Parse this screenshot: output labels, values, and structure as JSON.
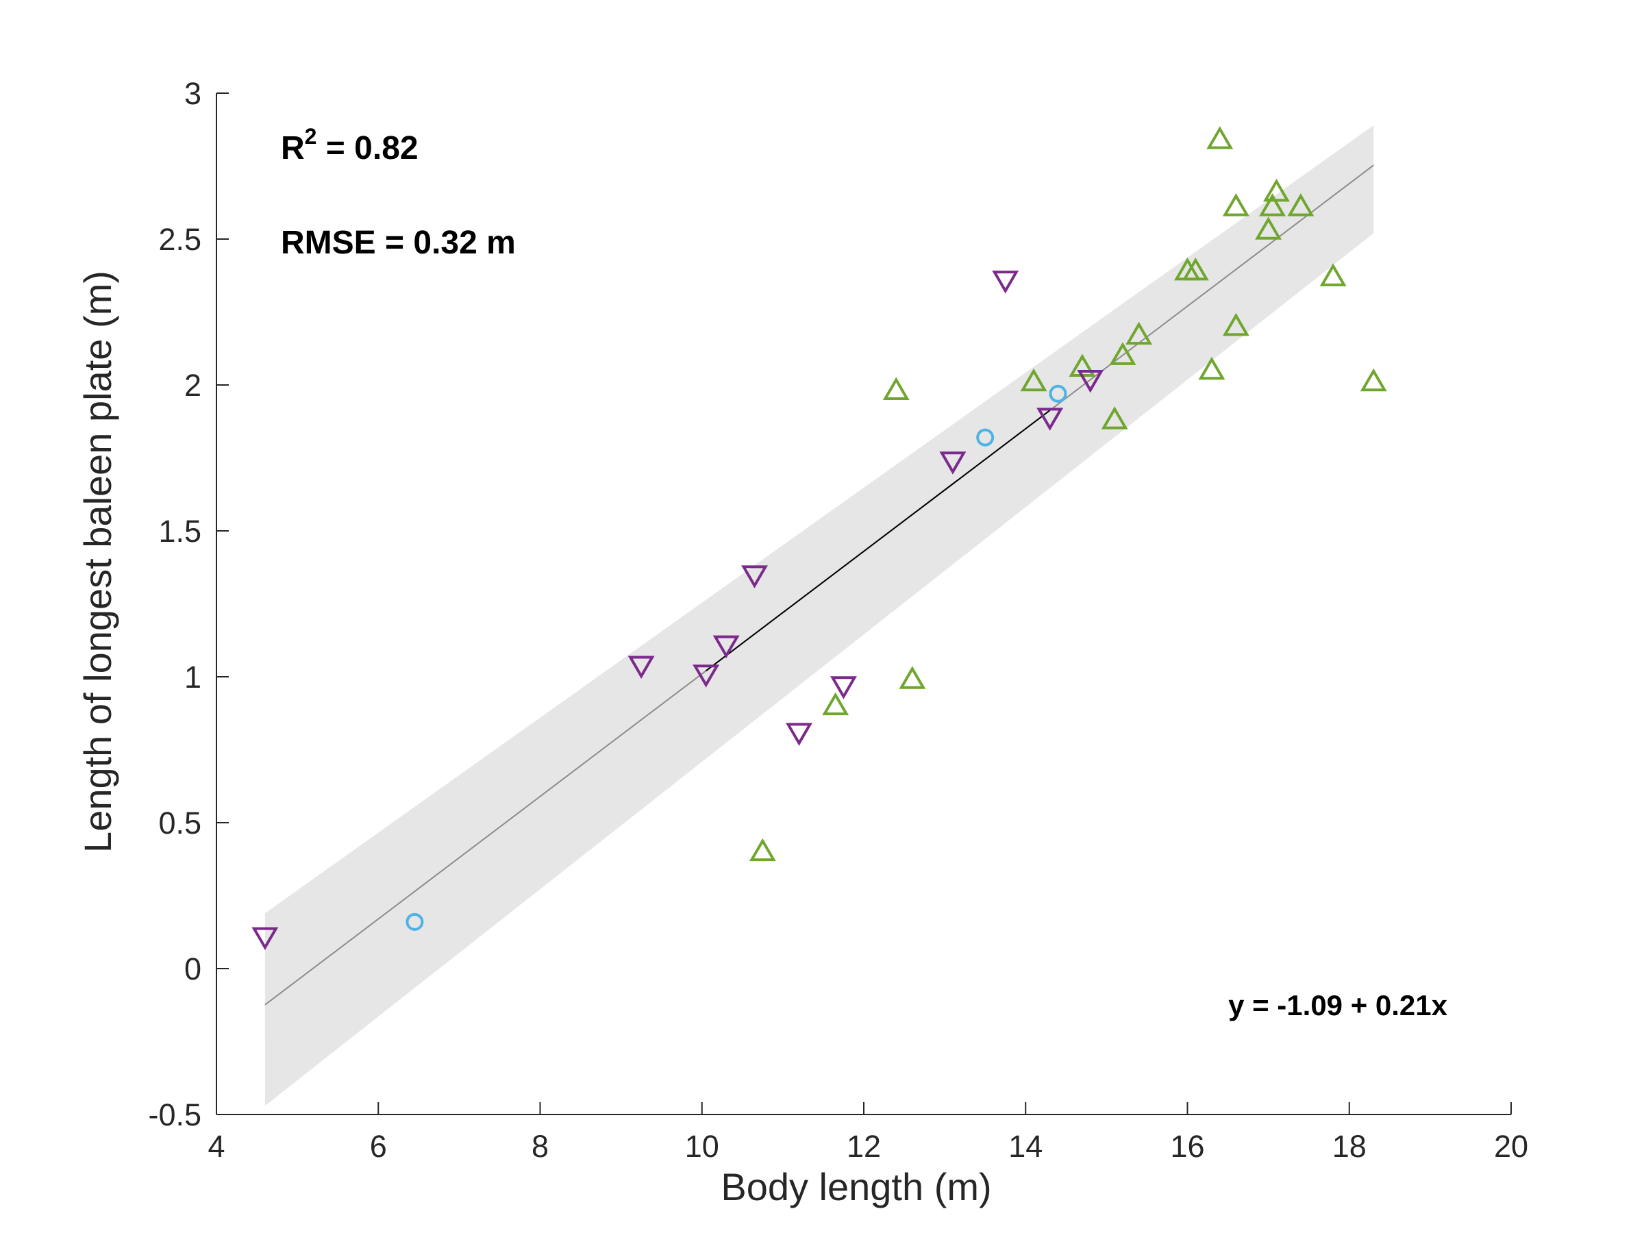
{
  "chart_data": {
    "type": "scatter",
    "xlabel": "Body length (m)",
    "ylabel": "Length of longest baleen plate (m)",
    "xlim": [
      4,
      20
    ],
    "ylim": [
      -0.5,
      3
    ],
    "xticks": [
      "4",
      "6",
      "8",
      "10",
      "12",
      "14",
      "16",
      "18",
      "20"
    ],
    "yticks": [
      "-0.5",
      "0",
      "0.5",
      "1",
      "1.5",
      "2",
      "2.5",
      "3"
    ],
    "grid": false,
    "annotations": {
      "r2_label": "R",
      "r2_sup": "2",
      "r2_value": " = 0.82",
      "rmse": "RMSE = 0.32 m",
      "equation": "y = -1.09 + 0.21x"
    },
    "fit": {
      "intercept": -1.09,
      "slope": 0.21,
      "x_range": [
        4.6,
        18.3
      ],
      "highlight_x_range": [
        10.05,
        14.3
      ],
      "band_lower": [
        [
          4.6,
          -0.47
        ],
        [
          18.3,
          2.52
        ]
      ],
      "band_upper": [
        [
          4.6,
          0.19
        ],
        [
          18.3,
          2.89
        ]
      ]
    },
    "colors": {
      "band": "#e6e6e6",
      "fit_line": "#8c8c8c",
      "fit_highlight": "#000000",
      "triangle_up": "#6fa62e",
      "triangle_down": "#7b2a8c",
      "circle": "#4db3e6",
      "axis": "#262626"
    },
    "series": [
      {
        "marker": "triangle-up",
        "points": [
          [
            10.75,
            0.4
          ],
          [
            11.65,
            0.9
          ],
          [
            12.6,
            0.99
          ],
          [
            12.4,
            1.98
          ],
          [
            14.1,
            2.01
          ],
          [
            14.7,
            2.06
          ],
          [
            15.1,
            1.88
          ],
          [
            15.2,
            2.1
          ],
          [
            15.4,
            2.17
          ],
          [
            16.0,
            2.39
          ],
          [
            16.1,
            2.39
          ],
          [
            16.3,
            2.05
          ],
          [
            16.4,
            2.84
          ],
          [
            16.6,
            2.61
          ],
          [
            16.6,
            2.2
          ],
          [
            17.0,
            2.53
          ],
          [
            17.05,
            2.61
          ],
          [
            17.1,
            2.66
          ],
          [
            17.4,
            2.61
          ],
          [
            17.8,
            2.37
          ],
          [
            18.3,
            2.01
          ]
        ]
      },
      {
        "marker": "triangle-down",
        "points": [
          [
            4.6,
            0.11
          ],
          [
            9.25,
            1.04
          ],
          [
            10.05,
            1.01
          ],
          [
            10.3,
            1.11
          ],
          [
            10.65,
            1.35
          ],
          [
            11.2,
            0.81
          ],
          [
            11.75,
            0.97
          ],
          [
            13.1,
            1.74
          ],
          [
            13.75,
            2.36
          ],
          [
            14.3,
            1.89
          ],
          [
            14.8,
            2.02
          ]
        ]
      },
      {
        "marker": "circle",
        "points": [
          [
            6.45,
            0.16
          ],
          [
            13.5,
            1.82
          ],
          [
            14.4,
            1.97
          ]
        ]
      }
    ]
  }
}
